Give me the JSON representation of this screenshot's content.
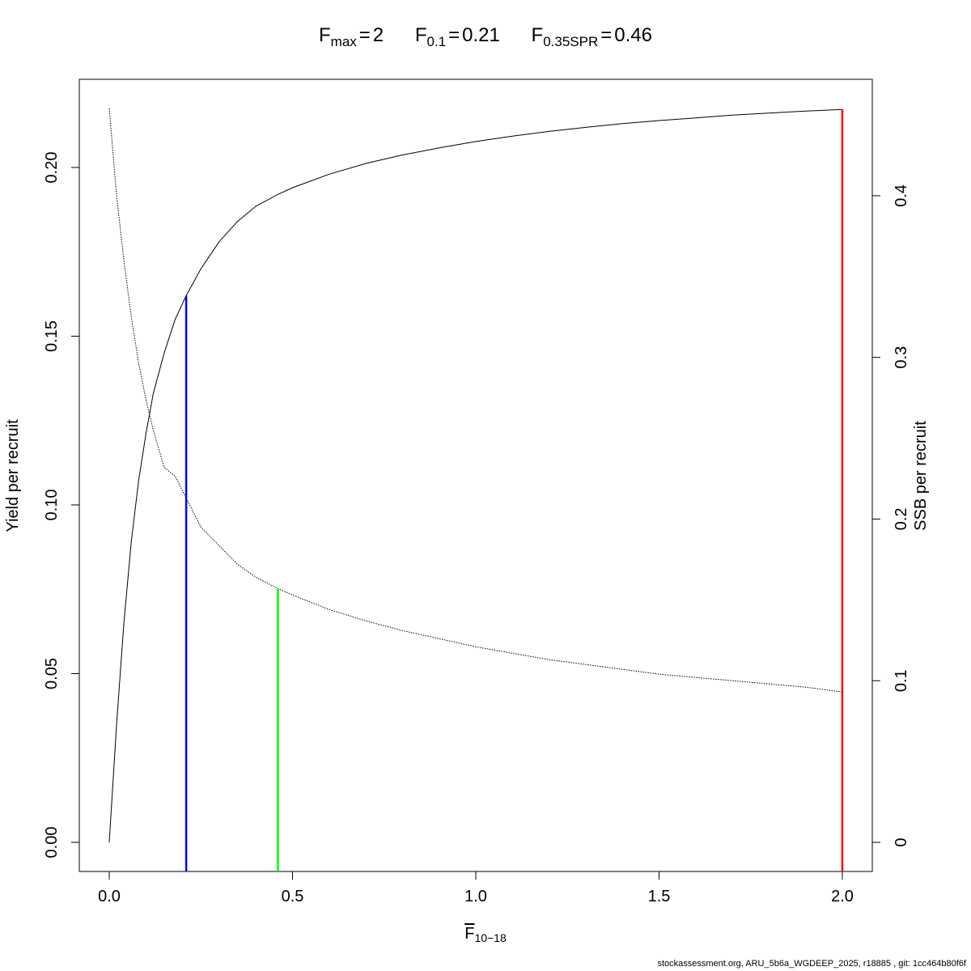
{
  "title": {
    "fmax": {
      "sym": "F",
      "sub": "max",
      "eq": "=",
      "val": "2"
    },
    "f01": {
      "sym": "F",
      "sub": "0.1",
      "eq": "=",
      "val": "0.21"
    },
    "fspr": {
      "sym": "F",
      "sub": "0.35SPR",
      "eq": "=",
      "val": "0.46"
    }
  },
  "xlabel": {
    "sym": "F",
    "sub": "10−18"
  },
  "footer": "stockassessment.org, ARU_5b6a_WGDEEP_2025, r18885 , git: 1cc464b80f6f",
  "chart_data": {
    "type": "line",
    "xlim": [
      0,
      2
    ],
    "ylim_left": [
      0,
      0.2175
    ],
    "ylim_right": [
      0,
      0.454
    ],
    "ylabel_left": "Yield per recruit",
    "ylabel_right": "SSB per recruit",
    "x_ticks": [
      "0.0",
      "0.5",
      "1.0",
      "1.5",
      "2.0"
    ],
    "y_left_ticks": [
      "0.00",
      "0.05",
      "0.10",
      "0.15",
      "0.20"
    ],
    "y_right_ticks": [
      "0",
      "0.1",
      "0.2",
      "0.3",
      "0.4"
    ],
    "grid": false,
    "series": [
      {
        "axis": "left",
        "style": "solid",
        "color": "#000000",
        "x": [
          0,
          0.02,
          0.04,
          0.06,
          0.08,
          0.1,
          0.12,
          0.15,
          0.18,
          0.21,
          0.25,
          0.3,
          0.35,
          0.4,
          0.46,
          0.5,
          0.6,
          0.7,
          0.8,
          0.9,
          1.0,
          1.1,
          1.2,
          1.3,
          1.4,
          1.5,
          1.6,
          1.7,
          1.8,
          1.9,
          2.0
        ],
        "y": [
          0,
          0.035,
          0.065,
          0.089,
          0.107,
          0.121,
          0.133,
          0.145,
          0.155,
          0.162,
          0.17,
          0.178,
          0.184,
          0.1885,
          0.192,
          0.194,
          0.198,
          0.2012,
          0.2037,
          0.2058,
          0.2077,
          0.2093,
          0.2107,
          0.2119,
          0.213,
          0.2139,
          0.2147,
          0.2155,
          0.2161,
          0.2167,
          0.2172
        ]
      },
      {
        "axis": "right",
        "style": "dotted",
        "color": "#000000",
        "x": [
          0,
          0.02,
          0.04,
          0.06,
          0.08,
          0.1,
          0.12,
          0.15,
          0.18,
          0.21,
          0.25,
          0.3,
          0.35,
          0.4,
          0.46,
          0.5,
          0.6,
          0.7,
          0.8,
          0.9,
          1.0,
          1.1,
          1.2,
          1.3,
          1.4,
          1.5,
          1.6,
          1.7,
          1.8,
          1.9,
          2.0
        ],
        "y": [
          0.454,
          0.4,
          0.36,
          0.325,
          0.297,
          0.274,
          0.255,
          0.232,
          0.2265,
          0.213,
          0.195,
          0.1835,
          0.172,
          0.164,
          0.157,
          0.153,
          0.144,
          0.137,
          0.131,
          0.126,
          0.121,
          0.117,
          0.113,
          0.11,
          0.107,
          0.104,
          0.102,
          0.1,
          0.098,
          0.096,
          0.093
        ]
      }
    ],
    "reference_lines": [
      {
        "name": "F0.1",
        "x": 0.21,
        "top": 0.162,
        "axis": "left",
        "color": "#0000ff"
      },
      {
        "name": "F0.35SPR",
        "x": 0.46,
        "top": 0.157,
        "axis": "right",
        "color": "#00ff00"
      },
      {
        "name": "Fmax",
        "x": 2.0,
        "top": 0.2172,
        "axis": "left",
        "color": "#ff0000"
      }
    ]
  }
}
